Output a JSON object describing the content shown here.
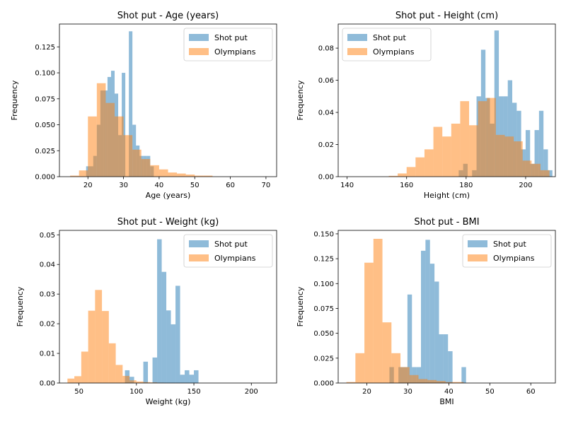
{
  "colors": {
    "shotput": "#1f77b4",
    "olympians": "#ff7f0e",
    "alpha": 0.5
  },
  "chart_data": [
    {
      "type": "histogram",
      "title": "Shot put - Age (years)",
      "xlabel": "Age (years)",
      "ylabel": "Frequency",
      "xlim": [
        12,
        73
      ],
      "ylim": [
        0,
        0.147
      ],
      "xticks": [
        20,
        30,
        40,
        50,
        60,
        70
      ],
      "yticks": [
        0.0,
        0.025,
        0.05,
        0.075,
        0.1,
        0.125
      ],
      "ytick_labels": [
        "0.000",
        "0.025",
        "0.050",
        "0.075",
        "0.100",
        "0.125"
      ],
      "legend": "top-right",
      "series": [
        {
          "name": "Shot put",
          "key": "shotput",
          "bin_start": 19.5,
          "bin_width": 1.0,
          "values": [
            0.01,
            0.01,
            0.02,
            0.05,
            0.083,
            0.083,
            0.096,
            0.102,
            0.08,
            0.04,
            0.1,
            0.0,
            0.14,
            0.05,
            0.03,
            0.02,
            0.02,
            0.02,
            0.01
          ]
        },
        {
          "name": "Olympians",
          "key": "olympians",
          "bin_start": 15.0,
          "bin_width": 2.5,
          "values": [
            0.001,
            0.006,
            0.058,
            0.09,
            0.071,
            0.058,
            0.04,
            0.026,
            0.017,
            0.011,
            0.007,
            0.004,
            0.003,
            0.002,
            0.001,
            0.001,
            0.0,
            0.0,
            0.0,
            0.0,
            0.0,
            0.0
          ]
        }
      ]
    },
    {
      "type": "histogram",
      "title": "Shot put - Height (cm)",
      "xlabel": "Height (cm)",
      "ylabel": "Frequency",
      "xlim": [
        137,
        210
      ],
      "ylim": [
        0,
        0.095
      ],
      "xticks": [
        140,
        160,
        180,
        200
      ],
      "yticks": [
        0.0,
        0.02,
        0.04,
        0.06,
        0.08
      ],
      "ytick_labels": [
        "0.00",
        "0.02",
        "0.04",
        "0.06",
        "0.08"
      ],
      "legend": "top-left",
      "series": [
        {
          "name": "Shot put",
          "key": "shotput",
          "bin_start": 177.5,
          "bin_width": 1.5,
          "values": [
            0.004,
            0.008,
            0.0,
            0.004,
            0.05,
            0.079,
            0.049,
            0.033,
            0.091,
            0.05,
            0.05,
            0.06,
            0.046,
            0.041,
            0.017,
            0.029,
            0.008,
            0.029,
            0.041,
            0.017,
            0.004
          ]
        },
        {
          "name": "Olympians",
          "key": "olympians",
          "bin_start": 145.0,
          "bin_width": 3.0,
          "values": [
            0.0,
            0.0,
            0.0,
            0.0005,
            0.002,
            0.006,
            0.012,
            0.017,
            0.031,
            0.025,
            0.033,
            0.047,
            0.032,
            0.047,
            0.049,
            0.026,
            0.025,
            0.022,
            0.01,
            0.008,
            0.004
          ]
        }
      ]
    },
    {
      "type": "histogram",
      "title": "Shot put - Weight (kg)",
      "xlabel": "Weight (kg)",
      "ylabel": "Frequency",
      "xlim": [
        33,
        222
      ],
      "ylim": [
        0,
        0.0515
      ],
      "xticks": [
        50,
        100,
        150,
        200
      ],
      "yticks": [
        0.0,
        0.01,
        0.02,
        0.03,
        0.04,
        0.05
      ],
      "ytick_labels": [
        "0.00",
        "0.01",
        "0.02",
        "0.03",
        "0.04",
        "0.05"
      ],
      "legend": "top-right",
      "series": [
        {
          "name": "Shot put",
          "key": "shotput",
          "bin_start": 90.0,
          "bin_width": 4.0,
          "values": [
            0.0043,
            0.0021,
            0.0,
            0.0,
            0.0072,
            0.0,
            0.0086,
            0.0485,
            0.0375,
            0.0245,
            0.0198,
            0.0328,
            0.0028,
            0.0043,
            0.0028,
            0.0043
          ]
        },
        {
          "name": "Olympians",
          "key": "olympians",
          "bin_start": 40.0,
          "bin_width": 6.0,
          "values": [
            0.0015,
            0.0023,
            0.0106,
            0.0244,
            0.0314,
            0.0243,
            0.0134,
            0.0061,
            0.0024,
            0.0009,
            0.0005,
            0.0003,
            0.0002,
            0.0001
          ]
        }
      ]
    },
    {
      "type": "histogram",
      "title": "Shot put - BMI",
      "xlabel": "BMI",
      "ylabel": "Frequency",
      "xlim": [
        13,
        66
      ],
      "ylim": [
        0,
        0.1535
      ],
      "xticks": [
        20,
        30,
        40,
        50,
        60
      ],
      "yticks": [
        0.0,
        0.025,
        0.05,
        0.075,
        0.1,
        0.125,
        0.15
      ],
      "ytick_labels": [
        "0.000",
        "0.025",
        "0.050",
        "0.075",
        "0.100",
        "0.125",
        "0.150"
      ],
      "legend": "top-right",
      "series": [
        {
          "name": "Shot put",
          "key": "shotput",
          "bin_start": 25.5,
          "bin_width": 1.1,
          "values": [
            0.016,
            0.0,
            0.016,
            0.016,
            0.089,
            0.016,
            0.016,
            0.133,
            0.144,
            0.12,
            0.102,
            0.049,
            0.049,
            0.032,
            0.0,
            0.0,
            0.016
          ]
        },
        {
          "name": "Olympians",
          "key": "olympians",
          "bin_start": 15.0,
          "bin_width": 2.2,
          "values": [
            0.001,
            0.03,
            0.121,
            0.145,
            0.061,
            0.03,
            0.016,
            0.008,
            0.004,
            0.003,
            0.002,
            0.001,
            0.001,
            0.0
          ]
        }
      ]
    }
  ]
}
